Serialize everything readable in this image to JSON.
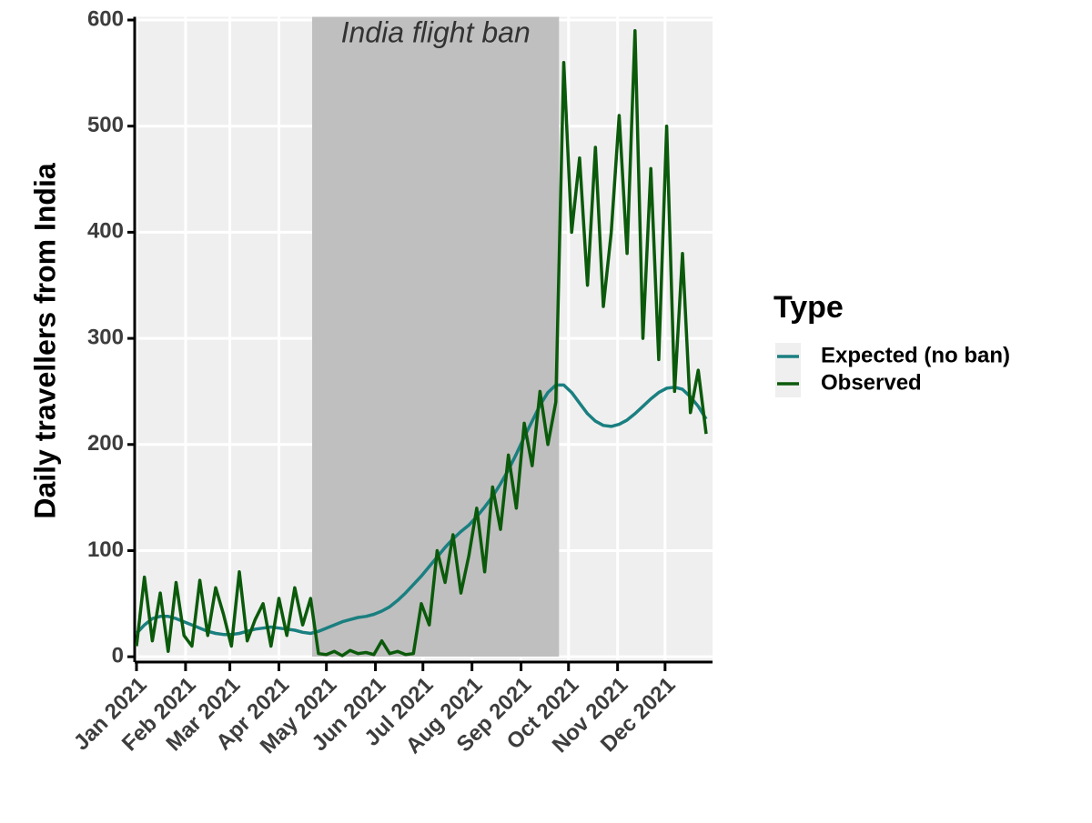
{
  "chart_data": {
    "type": "line",
    "y_label": "Daily travellers from India",
    "legend_title": "Type",
    "legend_position": "right",
    "grid": true,
    "shade": {
      "label": "India flight ban",
      "start": 111,
      "end": 267,
      "color": "#bfbfbf"
    },
    "xlim": [
      0,
      364
    ],
    "xticks": [
      {
        "value": 0,
        "label": "Jan 2021"
      },
      {
        "value": 31,
        "label": "Feb 2021"
      },
      {
        "value": 59,
        "label": "Mar 2021"
      },
      {
        "value": 90,
        "label": "Apr 2021"
      },
      {
        "value": 120,
        "label": "May 2021"
      },
      {
        "value": 151,
        "label": "Jun 2021"
      },
      {
        "value": 181,
        "label": "Jul 2021"
      },
      {
        "value": 212,
        "label": "Aug 2021"
      },
      {
        "value": 243,
        "label": "Sep 2021"
      },
      {
        "value": 273,
        "label": "Oct 2021"
      },
      {
        "value": 304,
        "label": "Nov 2021"
      },
      {
        "value": 334,
        "label": "Dec 2021"
      }
    ],
    "ylim": [
      -5,
      603
    ],
    "yticks": [
      0,
      100,
      200,
      300,
      400,
      500,
      600
    ],
    "x": [
      0,
      5,
      10,
      15,
      20,
      25,
      30,
      35,
      40,
      45,
      50,
      55,
      60,
      65,
      70,
      75,
      80,
      85,
      90,
      95,
      100,
      105,
      110,
      115,
      120,
      125,
      130,
      135,
      140,
      145,
      150,
      155,
      160,
      165,
      170,
      175,
      180,
      185,
      190,
      195,
      200,
      205,
      210,
      215,
      220,
      225,
      230,
      235,
      240,
      245,
      250,
      255,
      260,
      265,
      270,
      275,
      280,
      285,
      290,
      295,
      300,
      305,
      310,
      315,
      320,
      325,
      330,
      335,
      340,
      345,
      350,
      355,
      360
    ],
    "series": [
      {
        "name": "Expected (no ban)",
        "color": "#1a7f80",
        "values": [
          22,
          30,
          36,
          38,
          38,
          36,
          33,
          30,
          27,
          24,
          22,
          21,
          21,
          22,
          24,
          26,
          27,
          28,
          27,
          26,
          25,
          23,
          22,
          24,
          27,
          30,
          33,
          35,
          37,
          38,
          40,
          43,
          47,
          53,
          60,
          68,
          76,
          85,
          94,
          103,
          111,
          118,
          124,
          132,
          141,
          151,
          163,
          176,
          191,
          207,
          222,
          237,
          249,
          256,
          256,
          249,
          239,
          229,
          222,
          218,
          217,
          219,
          223,
          229,
          236,
          243,
          249,
          253,
          254,
          252,
          245,
          236,
          224
        ]
      },
      {
        "name": "Observed",
        "color": "#0b5a0b",
        "values": [
          10,
          75,
          15,
          60,
          5,
          70,
          20,
          10,
          72,
          20,
          65,
          40,
          10,
          80,
          15,
          35,
          50,
          10,
          55,
          20,
          65,
          30,
          55,
          3,
          2,
          5,
          1,
          6,
          3,
          4,
          2,
          15,
          3,
          5,
          2,
          3,
          50,
          30,
          100,
          70,
          115,
          60,
          95,
          140,
          80,
          160,
          120,
          190,
          140,
          220,
          180,
          250,
          200,
          240,
          560,
          400,
          470,
          350,
          480,
          330,
          400,
          510,
          380,
          590,
          300,
          460,
          280,
          500,
          250,
          380,
          230,
          270,
          210
        ]
      }
    ]
  }
}
